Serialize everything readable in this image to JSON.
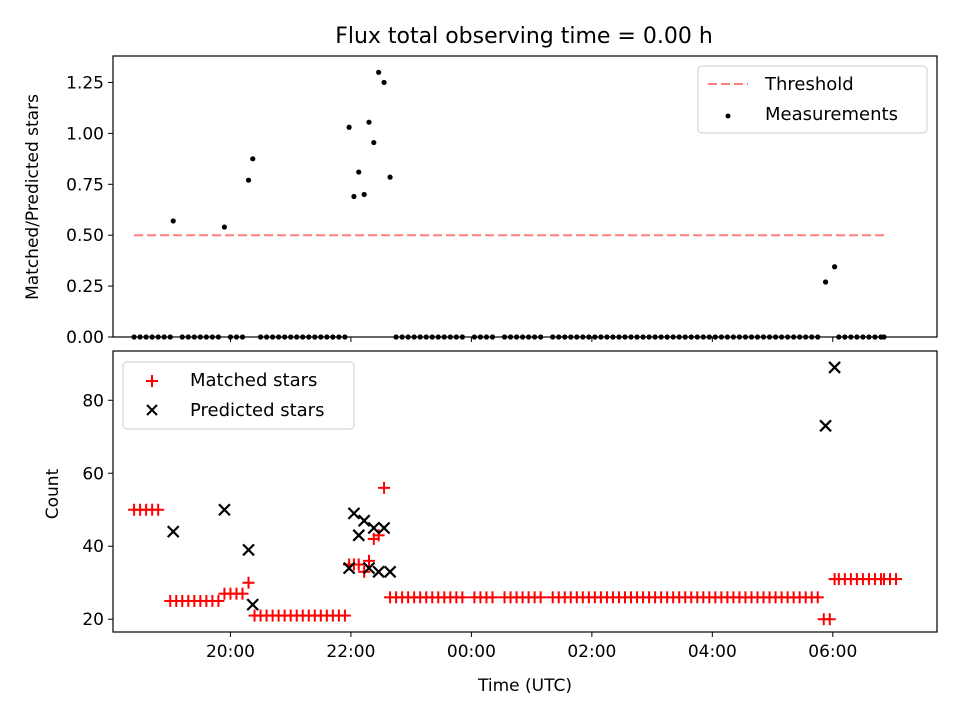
{
  "title": "Flux total observing time = 0.00 h",
  "colors": {
    "threshold": "#ff7f7f",
    "measurements": "#000000",
    "matched": "#ff0000",
    "predicted": "#000000"
  },
  "chart_data": [
    {
      "type": "scatter",
      "title": "Flux total observing time = 0.00 h",
      "xlabel": "",
      "ylabel": "Matched/Predicted stars",
      "x_unit": "hours, 00:00 = midnight",
      "xlim": [
        18.05,
        31.73
      ],
      "ylim": [
        0,
        1.38
      ],
      "yticks": [
        "0.00",
        "0.25",
        "0.50",
        "0.75",
        "1.00",
        "1.25"
      ],
      "xticks": [
        20,
        22,
        24,
        26,
        28,
        30
      ],
      "xtick_labels": [
        "",
        "",
        "",
        "",
        "",
        ""
      ],
      "legend": {
        "location": "upper right",
        "entries": [
          "Threshold",
          "Measurements"
        ]
      },
      "series": [
        {
          "name": "Threshold",
          "kind": "dashed-line",
          "color": "#ff7f7f",
          "x": [
            18.4,
            30.85
          ],
          "y": [
            0.5,
            0.5
          ]
        },
        {
          "name": "Measurements",
          "kind": "dot",
          "color": "#000000",
          "points": [
            [
              19.05,
              0.57
            ],
            [
              19.9,
              0.54
            ],
            [
              20.3,
              0.77
            ],
            [
              20.37,
              0.875
            ],
            [
              21.97,
              1.03
            ],
            [
              22.05,
              0.69
            ],
            [
              22.13,
              0.81
            ],
            [
              22.22,
              0.7
            ],
            [
              22.3,
              1.055
            ],
            [
              22.38,
              0.955
            ],
            [
              22.46,
              1.3
            ],
            [
              22.55,
              1.25
            ],
            [
              22.65,
              0.785
            ],
            [
              29.88,
              0.27
            ],
            [
              30.03,
              0.345
            ]
          ],
          "zero_x": [
            18.4,
            18.5,
            18.6,
            18.7,
            18.8,
            18.9,
            19.0,
            19.2,
            19.3,
            19.4,
            19.5,
            19.6,
            19.7,
            19.8,
            20.0,
            20.1,
            20.2,
            20.5,
            20.6,
            20.7,
            20.8,
            20.9,
            21.0,
            21.1,
            21.2,
            21.3,
            21.4,
            21.5,
            21.6,
            21.7,
            21.8,
            21.9,
            22.75,
            22.85,
            22.95,
            23.05,
            23.15,
            23.25,
            23.35,
            23.45,
            23.55,
            23.65,
            23.75,
            23.85,
            24.05,
            24.15,
            24.25,
            24.35,
            24.55,
            24.65,
            24.75,
            24.85,
            24.95,
            25.05,
            25.15,
            25.35,
            25.45,
            25.55,
            25.65,
            25.75,
            25.85,
            25.95,
            26.05,
            26.15,
            26.25,
            26.35,
            26.45,
            26.55,
            26.65,
            26.75,
            26.85,
            26.95,
            27.05,
            27.15,
            27.25,
            27.35,
            27.45,
            27.55,
            27.65,
            27.75,
            27.85,
            27.95,
            28.05,
            28.15,
            28.25,
            28.35,
            28.45,
            28.55,
            28.65,
            28.75,
            28.85,
            28.95,
            29.05,
            29.15,
            29.25,
            29.35,
            29.45,
            29.55,
            29.65,
            29.75,
            30.1,
            30.2,
            30.3,
            30.4,
            30.5,
            30.6,
            30.7,
            30.8,
            30.85
          ]
        }
      ]
    },
    {
      "type": "scatter",
      "title": "",
      "xlabel": "Time (UTC)",
      "ylabel": "Count",
      "xlim": [
        18.05,
        31.73
      ],
      "ylim": [
        16.5,
        93.5
      ],
      "yticks": [
        "20",
        "40",
        "60",
        "80"
      ],
      "xticks": [
        20,
        22,
        24,
        26,
        28,
        30
      ],
      "xtick_labels": [
        "20:00",
        "22:00",
        "00:00",
        "02:00",
        "04:00",
        "06:00"
      ],
      "legend": {
        "location": "upper left",
        "entries": [
          "Matched stars",
          "Predicted stars"
        ]
      },
      "series": [
        {
          "name": "Matched stars",
          "marker": "+",
          "color": "#ff0000",
          "points": [
            [
              18.4,
              50
            ],
            [
              18.5,
              50
            ],
            [
              18.6,
              50
            ],
            [
              18.7,
              50
            ],
            [
              18.8,
              50
            ],
            [
              19.0,
              25
            ],
            [
              19.1,
              25
            ],
            [
              19.2,
              25
            ],
            [
              19.3,
              25
            ],
            [
              19.4,
              25
            ],
            [
              19.5,
              25
            ],
            [
              19.6,
              25
            ],
            [
              19.7,
              25
            ],
            [
              19.8,
              25
            ],
            [
              19.9,
              27
            ],
            [
              20.0,
              27
            ],
            [
              20.1,
              27
            ],
            [
              20.2,
              27
            ],
            [
              20.3,
              30
            ],
            [
              20.4,
              21
            ],
            [
              20.5,
              21
            ],
            [
              20.6,
              21
            ],
            [
              20.7,
              21
            ],
            [
              20.8,
              21
            ],
            [
              20.9,
              21
            ],
            [
              21.0,
              21
            ],
            [
              21.1,
              21
            ],
            [
              21.2,
              21
            ],
            [
              21.3,
              21
            ],
            [
              21.4,
              21
            ],
            [
              21.5,
              21
            ],
            [
              21.6,
              21
            ],
            [
              21.7,
              21
            ],
            [
              21.8,
              21
            ],
            [
              21.9,
              21
            ],
            [
              21.97,
              35
            ],
            [
              22.05,
              35
            ],
            [
              22.13,
              35
            ],
            [
              22.22,
              33
            ],
            [
              22.3,
              36
            ],
            [
              22.38,
              42
            ],
            [
              22.46,
              43
            ],
            [
              22.55,
              56
            ],
            [
              22.65,
              26
            ],
            [
              22.75,
              26
            ],
            [
              22.85,
              26
            ],
            [
              22.95,
              26
            ],
            [
              23.05,
              26
            ],
            [
              23.15,
              26
            ],
            [
              23.25,
              26
            ],
            [
              23.35,
              26
            ],
            [
              23.45,
              26
            ],
            [
              23.55,
              26
            ],
            [
              23.65,
              26
            ],
            [
              23.75,
              26
            ],
            [
              23.85,
              26
            ],
            [
              24.05,
              26
            ],
            [
              24.15,
              26
            ],
            [
              24.25,
              26
            ],
            [
              24.35,
              26
            ],
            [
              24.55,
              26
            ],
            [
              24.65,
              26
            ],
            [
              24.75,
              26
            ],
            [
              24.85,
              26
            ],
            [
              24.95,
              26
            ],
            [
              25.05,
              26
            ],
            [
              25.15,
              26
            ],
            [
              25.35,
              26
            ],
            [
              25.45,
              26
            ],
            [
              25.55,
              26
            ],
            [
              25.65,
              26
            ],
            [
              25.75,
              26
            ],
            [
              25.85,
              26
            ],
            [
              25.95,
              26
            ],
            [
              26.05,
              26
            ],
            [
              26.15,
              26
            ],
            [
              26.25,
              26
            ],
            [
              26.35,
              26
            ],
            [
              26.45,
              26
            ],
            [
              26.55,
              26
            ],
            [
              26.65,
              26
            ],
            [
              26.75,
              26
            ],
            [
              26.85,
              26
            ],
            [
              26.95,
              26
            ],
            [
              27.05,
              26
            ],
            [
              27.15,
              26
            ],
            [
              27.25,
              26
            ],
            [
              27.35,
              26
            ],
            [
              27.45,
              26
            ],
            [
              27.55,
              26
            ],
            [
              27.65,
              26
            ],
            [
              27.75,
              26
            ],
            [
              27.85,
              26
            ],
            [
              27.95,
              26
            ],
            [
              28.05,
              26
            ],
            [
              28.15,
              26
            ],
            [
              28.25,
              26
            ],
            [
              28.35,
              26
            ],
            [
              28.45,
              26
            ],
            [
              28.55,
              26
            ],
            [
              28.65,
              26
            ],
            [
              28.75,
              26
            ],
            [
              28.85,
              26
            ],
            [
              28.95,
              26
            ],
            [
              29.05,
              26
            ],
            [
              29.15,
              26
            ],
            [
              29.25,
              26
            ],
            [
              29.35,
              26
            ],
            [
              29.45,
              26
            ],
            [
              29.55,
              26
            ],
            [
              29.65,
              26
            ],
            [
              29.75,
              26
            ],
            [
              29.85,
              20
            ],
            [
              29.95,
              20
            ],
            [
              30.03,
              31
            ],
            [
              30.1,
              31
            ],
            [
              30.2,
              31
            ],
            [
              30.3,
              31
            ],
            [
              30.4,
              31
            ],
            [
              30.5,
              31
            ],
            [
              30.6,
              31
            ],
            [
              30.7,
              31
            ],
            [
              30.8,
              31
            ],
            [
              30.85,
              31
            ],
            [
              30.95,
              31
            ],
            [
              31.05,
              31
            ]
          ]
        },
        {
          "name": "Predicted stars",
          "marker": "x",
          "color": "#000000",
          "points": [
            [
              19.05,
              44
            ],
            [
              19.9,
              50
            ],
            [
              20.3,
              39
            ],
            [
              20.37,
              24
            ],
            [
              21.97,
              34
            ],
            [
              22.05,
              49
            ],
            [
              22.13,
              43
            ],
            [
              22.22,
              47
            ],
            [
              22.3,
              34
            ],
            [
              22.38,
              45
            ],
            [
              22.46,
              33
            ],
            [
              22.55,
              45
            ],
            [
              22.65,
              33
            ],
            [
              29.88,
              73
            ],
            [
              30.03,
              89
            ]
          ]
        }
      ]
    }
  ]
}
